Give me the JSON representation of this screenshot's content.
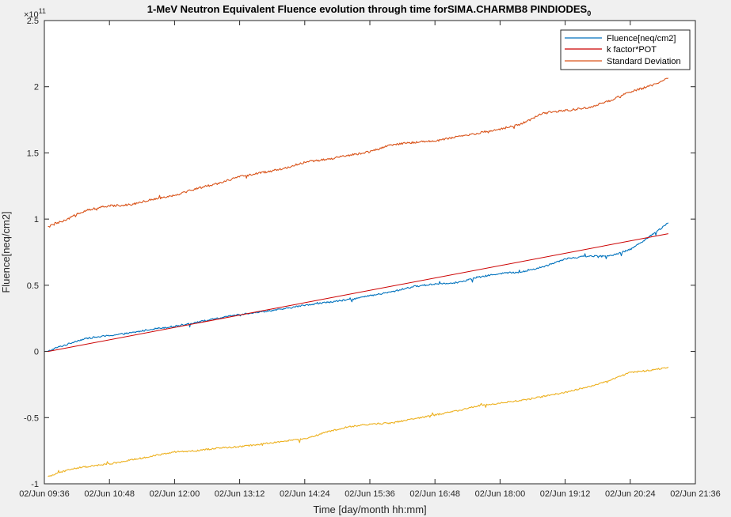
{
  "chart_data": {
    "type": "line",
    "title": "1-MeV Neutron Equivalent Fluence evolution through time forSIMA.CHARMB8 PINDIODES",
    "title_subscript": "0",
    "xlabel": "Time [day/month hh:mm]",
    "ylabel": "Fluence[neq/cm2]",
    "y_exponent_label": "×10",
    "y_exponent": "11",
    "y_multiplier": 100000000000.0,
    "ylim": [
      -1,
      2.5
    ],
    "xlim_minutes": [
      576,
      1296
    ],
    "x_ticks": [
      "02/Jun 09:36",
      "02/Jun 10:48",
      "02/Jun 12:00",
      "02/Jun 13:12",
      "02/Jun 14:24",
      "02/Jun 15:36",
      "02/Jun 16:48",
      "02/Jun 18:00",
      "02/Jun 19:12",
      "02/Jun 20:24",
      "02/Jun 21:36"
    ],
    "y_ticks": [
      "-1",
      "-0.5",
      "0",
      "0.5",
      "1",
      "1.5",
      "2",
      "2.5"
    ],
    "y_tick_values": [
      -1,
      -0.5,
      0,
      0.5,
      1,
      1.5,
      2,
      2.5
    ],
    "grid": false,
    "legend_position": "top-right",
    "series": [
      {
        "name": "Fluence[neq/cm2]",
        "color": "#0072BD",
        "x_minutes": [
          580,
          590,
          600,
          612,
          624,
          648,
          672,
          696,
          720,
          744,
          768,
          792,
          816,
          840,
          864,
          888,
          912,
          936,
          960,
          984,
          1008,
          1032,
          1056,
          1080,
          1104,
          1128,
          1152,
          1176,
          1200,
          1224,
          1248,
          1266
        ],
        "values": [
          0.0,
          0.03,
          0.05,
          0.08,
          0.1,
          0.12,
          0.14,
          0.17,
          0.19,
          0.22,
          0.25,
          0.28,
          0.3,
          0.32,
          0.35,
          0.37,
          0.39,
          0.42,
          0.45,
          0.49,
          0.51,
          0.52,
          0.56,
          0.59,
          0.6,
          0.64,
          0.7,
          0.72,
          0.72,
          0.77,
          0.88,
          0.97
        ]
      },
      {
        "name": "k factor*POT",
        "color": "#cc0000",
        "x_minutes": [
          580,
          1266
        ],
        "values": [
          0.0,
          0.89
        ]
      },
      {
        "name": "Standard Deviation",
        "color": "#D95319",
        "x_minutes": [
          580,
          590,
          600,
          612,
          624,
          648,
          672,
          696,
          720,
          744,
          768,
          792,
          816,
          840,
          864,
          888,
          912,
          936,
          960,
          984,
          1008,
          1032,
          1056,
          1080,
          1104,
          1128,
          1152,
          1176,
          1200,
          1224,
          1248,
          1266
        ],
        "values": [
          0.94,
          0.97,
          0.99,
          1.04,
          1.07,
          1.1,
          1.11,
          1.15,
          1.18,
          1.23,
          1.27,
          1.32,
          1.35,
          1.38,
          1.43,
          1.45,
          1.48,
          1.51,
          1.56,
          1.58,
          1.59,
          1.62,
          1.65,
          1.68,
          1.72,
          1.8,
          1.82,
          1.84,
          1.89,
          1.96,
          2.01,
          2.07
        ]
      },
      {
        "name": "",
        "color": "#EDB120",
        "x_minutes": [
          580,
          590,
          600,
          612,
          624,
          648,
          672,
          696,
          720,
          744,
          768,
          792,
          816,
          840,
          864,
          888,
          912,
          936,
          960,
          984,
          1008,
          1032,
          1056,
          1080,
          1104,
          1128,
          1152,
          1176,
          1200,
          1224,
          1248,
          1266
        ],
        "values": [
          -0.95,
          -0.92,
          -0.9,
          -0.88,
          -0.87,
          -0.85,
          -0.82,
          -0.79,
          -0.76,
          -0.75,
          -0.73,
          -0.72,
          -0.7,
          -0.68,
          -0.66,
          -0.61,
          -0.57,
          -0.55,
          -0.54,
          -0.51,
          -0.48,
          -0.45,
          -0.41,
          -0.39,
          -0.37,
          -0.34,
          -0.31,
          -0.27,
          -0.22,
          -0.16,
          -0.14,
          -0.12
        ]
      }
    ]
  }
}
